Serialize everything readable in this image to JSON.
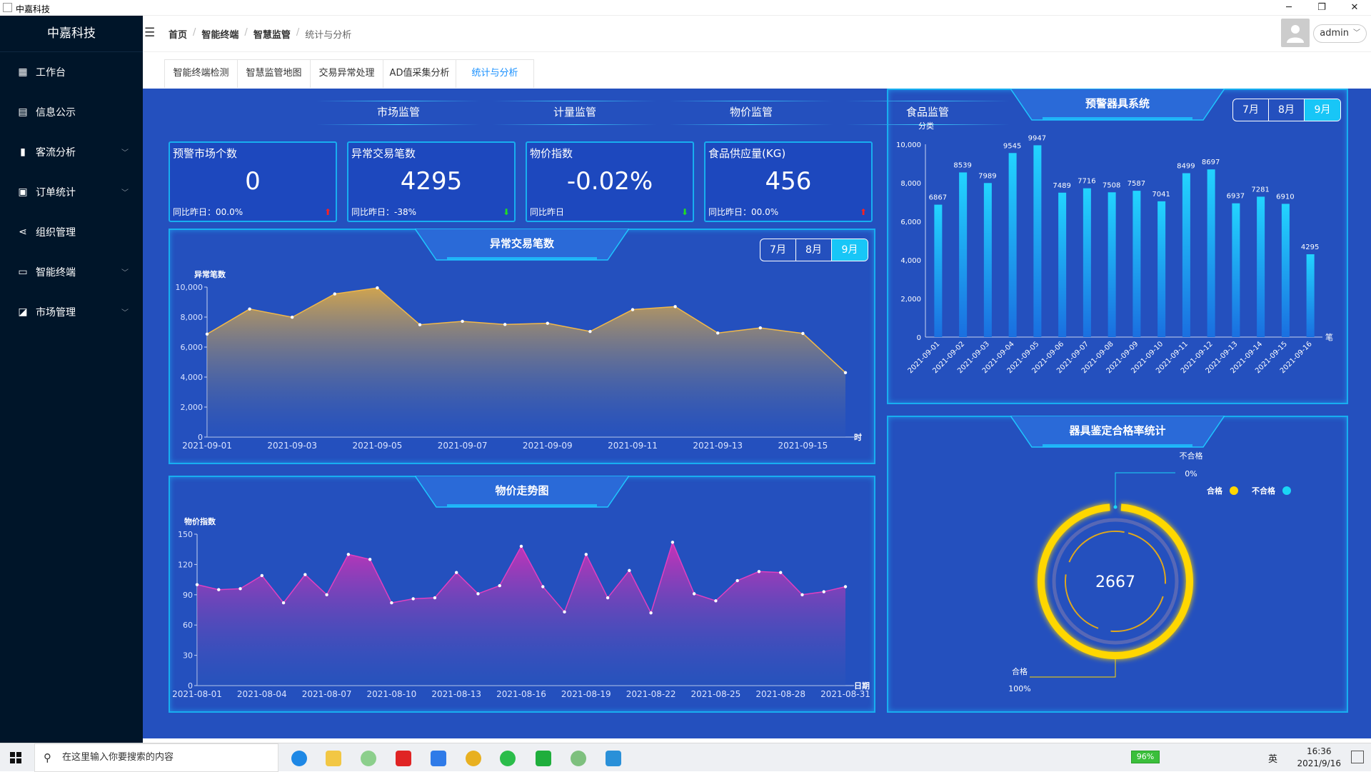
{
  "window": {
    "title": "中嘉科技",
    "min": "─",
    "max": "❐",
    "close": "✕"
  },
  "sidebar": {
    "brand": "中嘉科技",
    "items": [
      {
        "label": "工作台",
        "icon": "dashboard-icon",
        "arrow": false
      },
      {
        "label": "信息公示",
        "icon": "document-icon",
        "arrow": false
      },
      {
        "label": "客流分析",
        "icon": "bar-chart-icon",
        "arrow": true
      },
      {
        "label": "订单统计",
        "icon": "clipboard-icon",
        "arrow": true
      },
      {
        "label": "组织管理",
        "icon": "share-icon",
        "arrow": false
      },
      {
        "label": "智能终端",
        "icon": "monitor-icon",
        "arrow": true
      },
      {
        "label": "市场管理",
        "icon": "line-chart-icon",
        "arrow": true
      }
    ]
  },
  "breadcrumb": [
    "首页",
    "智能终端",
    "智慧监管",
    "统计与分析"
  ],
  "user": {
    "name": "admin"
  },
  "tabs": [
    {
      "label": "智能终端检测"
    },
    {
      "label": "智慧监管地图"
    },
    {
      "label": "交易异常处理"
    },
    {
      "label": "AD值采集分析"
    },
    {
      "label": "统计与分析",
      "active": true
    }
  ],
  "kpi_sections": [
    "市场监管",
    "计量监管",
    "物价监管",
    "食品监管"
  ],
  "kpis": [
    {
      "title": "预警市场个数",
      "value": "0",
      "footer": "同比昨日：00.0%",
      "trend": "up"
    },
    {
      "title": "异常交易笔数",
      "value": "4295",
      "footer": "同比昨日：-38%",
      "trend": "down"
    },
    {
      "title": "物价指数",
      "value": "-0.02%",
      "footer": "同比昨日",
      "trend": "down"
    },
    {
      "title": "食品供应量(KG)",
      "value": "456",
      "footer": "同比昨日：00.0%",
      "trend": "up"
    }
  ],
  "panels": {
    "abnormal": {
      "title": "异常交易笔数",
      "ylabel": "异常笔数",
      "xunit": "时"
    },
    "price": {
      "title": "物价走势图",
      "ylabel": "物价指数",
      "xunit": "日期"
    },
    "warning": {
      "title": "预警器具系统",
      "ylabel": "分类",
      "xunit": "笔"
    },
    "pass": {
      "title": "器具鉴定合格率统计"
    }
  },
  "month_buttons": [
    "7月",
    "8月",
    "9月"
  ],
  "chart_data": [
    {
      "type": "area",
      "title": "异常交易笔数",
      "ylabel": "异常笔数",
      "xlabel": "时",
      "ylim": [
        0,
        10000
      ],
      "yticks": [
        0,
        2000,
        4000,
        6000,
        8000,
        10000
      ],
      "x": [
        "2021-09-01",
        "2021-09-02",
        "2021-09-03",
        "2021-09-04",
        "2021-09-05",
        "2021-09-06",
        "2021-09-07",
        "2021-09-08",
        "2021-09-09",
        "2021-09-10",
        "2021-09-11",
        "2021-09-12",
        "2021-09-13",
        "2021-09-14",
        "2021-09-15",
        "2021-09-16"
      ],
      "xtick_labels": [
        "2021-09-01",
        "2021-09-03",
        "2021-09-05",
        "2021-09-07",
        "2021-09-09",
        "2021-09-11",
        "2021-09-13",
        "2021-09-15"
      ],
      "values": [
        6867,
        8539,
        7989,
        9545,
        9947,
        7489,
        7716,
        7508,
        7587,
        7041,
        8499,
        8697,
        6937,
        7281,
        6910,
        4295
      ],
      "color": "#f0b84a"
    },
    {
      "type": "area",
      "title": "物价走势图",
      "ylabel": "物价指数",
      "xlabel": "日期",
      "ylim": [
        0,
        150
      ],
      "yticks": [
        0,
        30,
        60,
        90,
        120,
        150
      ],
      "x": [
        "2021-08-01",
        "2021-08-02",
        "2021-08-03",
        "2021-08-04",
        "2021-08-05",
        "2021-08-06",
        "2021-08-07",
        "2021-08-08",
        "2021-08-09",
        "2021-08-10",
        "2021-08-11",
        "2021-08-12",
        "2021-08-13",
        "2021-08-14",
        "2021-08-15",
        "2021-08-16",
        "2021-08-17",
        "2021-08-18",
        "2021-08-19",
        "2021-08-20",
        "2021-08-21",
        "2021-08-22",
        "2021-08-23",
        "2021-08-24",
        "2021-08-25",
        "2021-08-26",
        "2021-08-27",
        "2021-08-28",
        "2021-08-29",
        "2021-08-30",
        "2021-08-31"
      ],
      "xtick_labels": [
        "2021-08-01",
        "2021-08-04",
        "2021-08-07",
        "2021-08-10",
        "2021-08-13",
        "2021-08-16",
        "2021-08-19",
        "2021-08-22",
        "2021-08-25",
        "2021-08-28",
        "2021-08-31"
      ],
      "values": [
        100,
        95,
        96,
        109,
        82,
        110,
        90,
        130,
        125,
        82,
        86,
        87,
        112,
        91,
        99,
        138,
        98,
        73,
        130,
        87,
        114,
        72,
        142,
        91,
        84,
        104,
        113,
        112,
        90,
        93,
        98
      ],
      "color": "#e040c0"
    },
    {
      "type": "bar",
      "title": "预警器具系统",
      "ylabel": "分类",
      "xlabel": "笔",
      "ylim": [
        0,
        10000
      ],
      "yticks": [
        0,
        2000,
        4000,
        6000,
        8000,
        10000
      ],
      "categories": [
        "2021-09-01",
        "2021-09-02",
        "2021-09-03",
        "2021-09-04",
        "2021-09-05",
        "2021-09-06",
        "2021-09-07",
        "2021-09-08",
        "2021-09-09",
        "2021-09-10",
        "2021-09-11",
        "2021-09-12",
        "2021-09-13",
        "2021-09-14",
        "2021-09-15",
        "2021-09-16"
      ],
      "values": [
        6867,
        8539,
        7989,
        9545,
        9947,
        7489,
        7716,
        7508,
        7587,
        7041,
        8499,
        8697,
        6937,
        7281,
        6910,
        4295
      ],
      "color": "#18c6f7"
    },
    {
      "type": "pie",
      "title": "器具鉴定合格率统计",
      "center_value": "2667",
      "slices": [
        {
          "name": "合格",
          "value": 100,
          "label": "100%",
          "color": "#ffd700"
        },
        {
          "name": "不合格",
          "value": 0,
          "label": "0%",
          "color": "#1ad6f5"
        }
      ],
      "legend": [
        "合格",
        "不合格"
      ],
      "legend_position": "top-right"
    }
  ],
  "taskbar": {
    "search_placeholder": "在这里输入你要搜索的内容",
    "battery": "96%",
    "ime": "英",
    "time": "16:36",
    "date": "2021/9/16"
  }
}
